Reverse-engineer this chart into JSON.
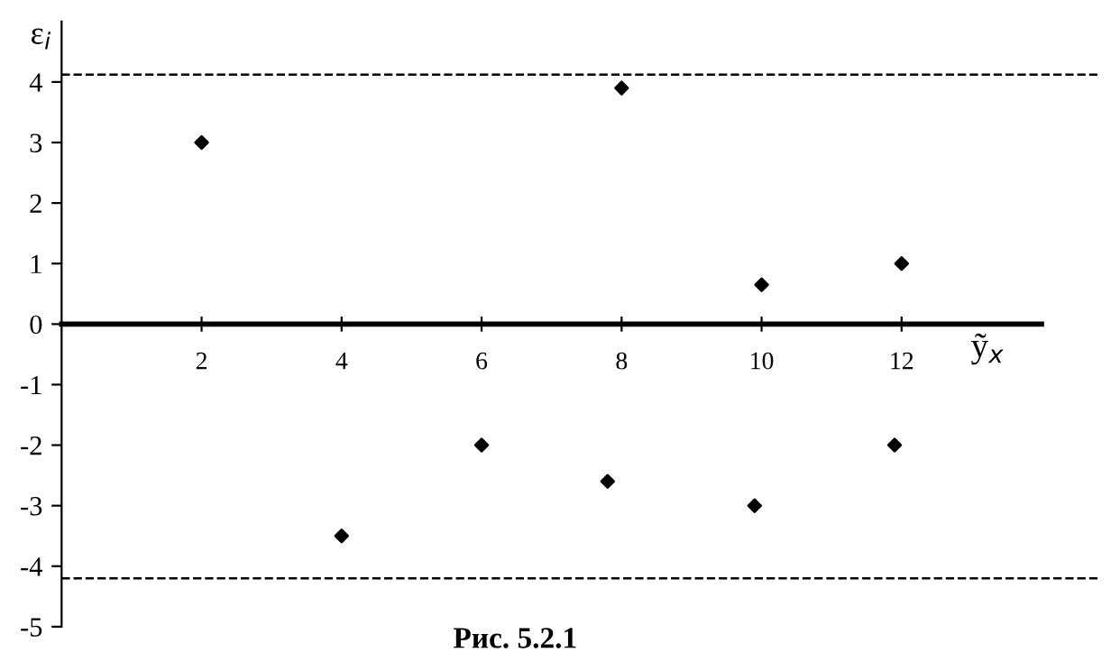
{
  "chart_data": {
    "type": "scatter",
    "xlabel": "ỹ$_{x}$",
    "ylabel": "ε$_{i}$",
    "annotations": [
      "Рис. 5.2.1"
    ],
    "x": [
      2,
      4,
      6,
      7.8,
      8,
      9.9,
      10,
      11.9,
      12
    ],
    "values": [
      3,
      -3.5,
      -2,
      -2.6,
      3.9,
      -3,
      0.65,
      -2,
      1
    ],
    "color": "#000000",
    "marker": "diamond",
    "xlim": [
      0,
      14
    ],
    "xticks": [
      2,
      4,
      6,
      8,
      10,
      12
    ],
    "ylim": [
      -5,
      5
    ],
    "yticks": [
      -5,
      -4,
      -3,
      -2,
      -1,
      0,
      1,
      2,
      3,
      4
    ],
    "ref_lines": [
      {
        "axis": "y",
        "value": 4.12,
        "line_style": "dashed",
        "color": "#000000"
      },
      {
        "axis": "y",
        "value": -4.2,
        "line_style": "dashed",
        "color": "#000000"
      }
    ],
    "grid": false
  }
}
